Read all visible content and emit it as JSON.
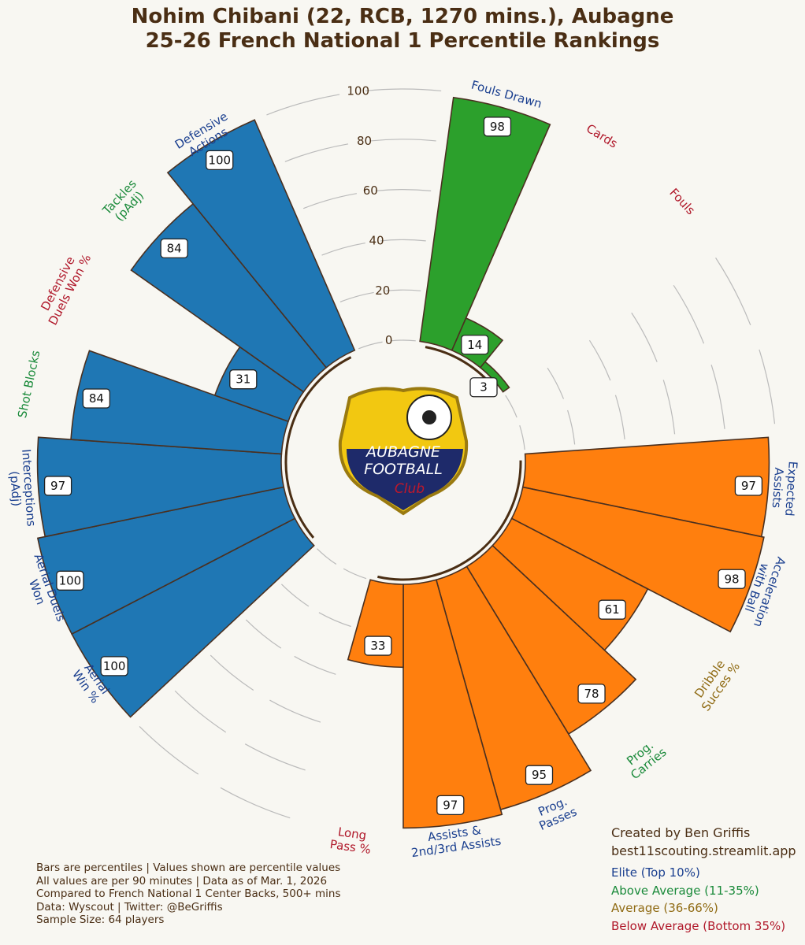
{
  "title": "Nohim Chibani (22, RCB, 1270 mins.), Aubagne\n25-26 French National 1 Percentile Rankings",
  "chart_data": {
    "type": "polar-bar",
    "categories": [
      "Fouls Drawn",
      "Cards",
      "Fouls",
      null,
      null,
      "Expected\nAssists",
      "Acceleration\nwith Ball",
      "Dribble\nSucces %",
      "Prog.\nCarries",
      "Prog.\nPasses",
      "Assists &\n2nd/3rd Assists",
      "Long\nPass %",
      null,
      null,
      "Aerial\nWin %",
      "Aerial Duels\nWon",
      "Interceptions\n(pAdj)",
      "Shot Blocks",
      "Defensive\nDuels Won %",
      "Tackles\n(pAdj)",
      "Defensive\nActions",
      null,
      null
    ],
    "values": [
      98,
      14,
      3,
      null,
      null,
      97,
      98,
      61,
      78,
      95,
      97,
      33,
      null,
      null,
      100,
      100,
      97,
      84,
      31,
      84,
      100,
      null,
      null
    ],
    "bar_colors": [
      "#2ca02c",
      "#2ca02c",
      "#2ca02c",
      null,
      null,
      "#ff7f0e",
      "#ff7f0e",
      "#ff7f0e",
      "#ff7f0e",
      "#ff7f0e",
      "#ff7f0e",
      "#ff7f0e",
      null,
      null,
      "#1f77b4",
      "#1f77b4",
      "#1f77b4",
      "#1f77b4",
      "#1f77b4",
      "#1f77b4",
      "#1f77b4",
      null,
      null
    ],
    "label_colors": [
      "#1a3f8f",
      "#b0182a",
      "#b0182a",
      null,
      null,
      "#1a3f8f",
      "#1a3f8f",
      "#8f6a12",
      "#1a8a3a",
      "#1a3f8f",
      "#1a3f8f",
      "#b0182a",
      null,
      null,
      "#1a3f8f",
      "#1a3f8f",
      "#1a3f8f",
      "#1a8a3a",
      "#b0182a",
      "#1a8a3a",
      "#1a3f8f",
      null,
      null
    ],
    "ylim": [
      0,
      100
    ],
    "yticks": [
      0,
      20,
      40,
      60,
      80,
      100
    ],
    "legend": [
      {
        "label": "Elite (Top 10%)",
        "color": "#1a3f8f"
      },
      {
        "label": "Above Average (11-35%)",
        "color": "#1a8a3a"
      },
      {
        "label": "Average (36-66%)",
        "color": "#8f6a12"
      },
      {
        "label": "Below Average (Bottom 35%)",
        "color": "#b0182a"
      }
    ]
  },
  "logo_text": [
    "AUBAGNE",
    "FOOTBALL",
    "Club"
  ],
  "credit": [
    "Created by Ben Griffis",
    "best11scouting.streamlit.app"
  ],
  "notes": [
    "Bars are percentiles | Values shown are percentile values",
    "All values are per 90 minutes | Data as of Mar. 1, 2026",
    "Compared to French National 1 Center Backs, 500+ mins",
    "Data: Wyscout | Twitter: @BeGriffis",
    "Sample Size: 64 players"
  ]
}
